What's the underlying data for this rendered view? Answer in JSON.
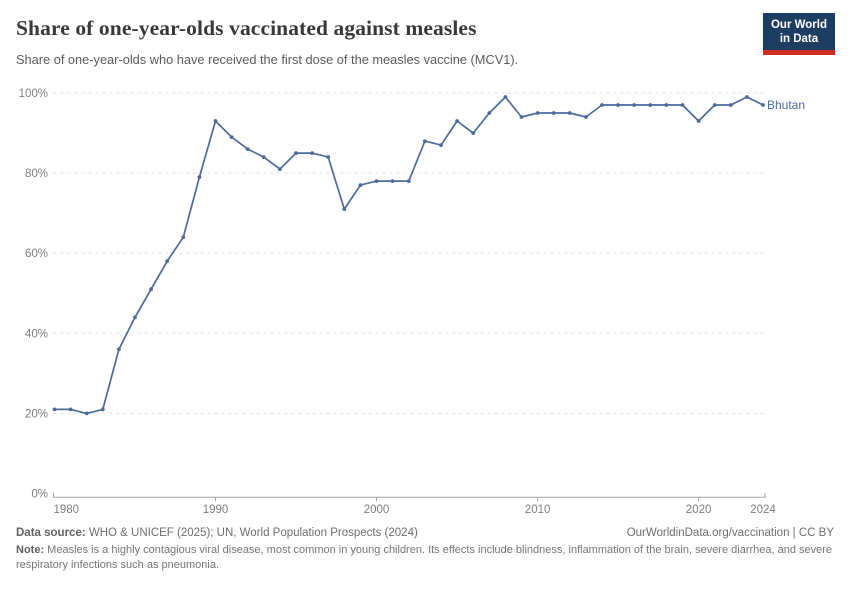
{
  "header": {
    "title": "Share of one-year-olds vaccinated against measles",
    "subtitle": "Share of one-year-olds who have received the first dose of the measles vaccine (MCV1).",
    "logo": {
      "line1": "Our World",
      "line2": "in Data",
      "bg_color": "#1d3d63",
      "accent_color": "#d42b21"
    }
  },
  "chart_data": {
    "type": "line",
    "title": "Share of one-year-olds vaccinated against measles",
    "xlabel": "",
    "ylabel": "",
    "xlim": [
      1980,
      2024
    ],
    "ylim": [
      0,
      100
    ],
    "grid": "horizontal-dashed",
    "yticks": [
      0,
      20,
      40,
      60,
      80,
      100
    ],
    "ytick_labels": [
      "0%",
      "20%",
      "40%",
      "60%",
      "80%",
      "100%"
    ],
    "xticks": [
      1980,
      1990,
      2000,
      2010,
      2020,
      2024
    ],
    "xtick_labels": [
      "1980",
      "1990",
      "2000",
      "2010",
      "2020",
      "2024"
    ],
    "legend_position": "end-of-line",
    "series": [
      {
        "name": "Bhutan",
        "color": "#4c6a9c",
        "x": [
          1980,
          1981,
          1982,
          1983,
          1984,
          1985,
          1986,
          1987,
          1988,
          1989,
          1990,
          1991,
          1992,
          1993,
          1994,
          1995,
          1996,
          1997,
          1998,
          1999,
          2000,
          2001,
          2002,
          2003,
          2004,
          2005,
          2006,
          2007,
          2008,
          2009,
          2010,
          2011,
          2012,
          2013,
          2014,
          2015,
          2016,
          2017,
          2018,
          2019,
          2020,
          2021,
          2022,
          2023,
          2024
        ],
        "values": [
          21,
          21,
          20,
          21,
          36,
          44,
          51,
          58,
          64,
          79,
          93,
          89,
          86,
          84,
          81,
          85,
          85,
          84,
          71,
          77,
          78,
          78,
          78,
          88,
          87,
          93,
          90,
          95,
          99,
          94,
          95,
          95,
          95,
          94,
          97,
          97,
          97,
          97,
          97,
          97,
          93,
          97,
          97,
          99,
          97
        ]
      }
    ]
  },
  "footer": {
    "datasource_label": "Data source:",
    "datasource_value": " WHO & UNICEF (2025); UN, World Population Prospects (2024)",
    "link": "OurWorldinData.org/vaccination | CC BY",
    "note_label": "Note:",
    "note_value": " Measles is a highly contagious viral disease, most common in young children. Its effects include blindness, inflammation of the brain, severe diarrhea, and severe respiratory infections such as pneumonia."
  }
}
